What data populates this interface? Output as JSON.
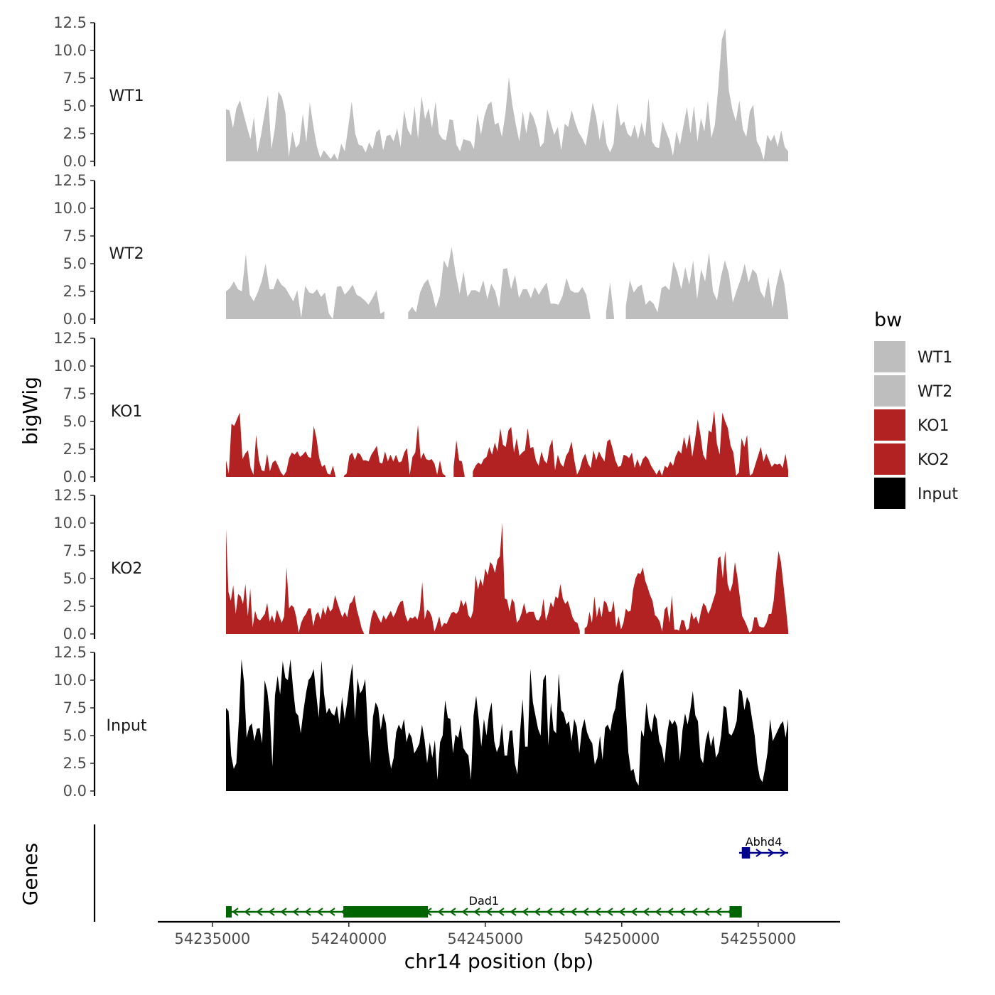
{
  "chart_data": {
    "type": "area",
    "title": "",
    "xlabel": "chr14 position (bp)",
    "ylabel_tracks": "bigWig",
    "ylabel_genes": "Genes",
    "xlim": [
      54233000,
      54258000
    ],
    "x_ticks": [
      {
        "value": 54235000,
        "label": "54235000"
      },
      {
        "value": 54240000,
        "label": "54240000"
      },
      {
        "value": 54245000,
        "label": "54245000"
      },
      {
        "value": 54250000,
        "label": "54250000"
      },
      {
        "value": 54255000,
        "label": "54255000"
      }
    ],
    "ylim": [
      0,
      12.5
    ],
    "y_ticks": [
      {
        "value": 0,
        "label": "0.0"
      },
      {
        "value": 2.5,
        "label": "2.5"
      },
      {
        "value": 5,
        "label": "5.0"
      },
      {
        "value": 7.5,
        "label": "7.5"
      },
      {
        "value": 10,
        "label": "10.0"
      },
      {
        "value": 12.5,
        "label": "12.5"
      }
    ],
    "x_range": [
      54235500,
      54256100
    ],
    "legend": {
      "title": "bw",
      "position": "right",
      "entries": [
        {
          "label": "WT1",
          "color": "#bebebe"
        },
        {
          "label": "WT2",
          "color": "#bebebe"
        },
        {
          "label": "KO1",
          "color": "#b22222"
        },
        {
          "label": "KO2",
          "color": "#b22222"
        },
        {
          "label": "Input",
          "color": "#000000"
        }
      ]
    },
    "series": [
      {
        "name": "WT1",
        "color": "#bebebe",
        "values": [
          4.7,
          4.6,
          3.0,
          4.8,
          5.5,
          4.3,
          3.1,
          2.0,
          4.0,
          0.8,
          2.3,
          4.2,
          6.0,
          1.1,
          3.0,
          6.3,
          5.8,
          4.4,
          0.4,
          2.7,
          1.2,
          1.6,
          4.3,
          1.7,
          5.3,
          3.2,
          1.4,
          0.3,
          1.0,
          0.6,
          0.2,
          0.7,
          0.1,
          1.6,
          0.9,
          3.1,
          5.4,
          2.5,
          1.5,
          1.4,
          0.8,
          1.7,
          1.1,
          2.6,
          2.9,
          1.0,
          2.3,
          2.4,
          1.8,
          3.0,
          1.3,
          4.6,
          2.9,
          2.3,
          5.0,
          2.0,
          5.9,
          3.8,
          4.8,
          3.0,
          5.4,
          2.5,
          2.0,
          1.9,
          3.8,
          3.7,
          1.5,
          0.9,
          2.0,
          1.9,
          1.8,
          1.1,
          4.3,
          2.4,
          4.1,
          5.1,
          5.4,
          3.3,
          3.5,
          2.2,
          4.3,
          7.6,
          5.1,
          3.3,
          1.8,
          4.5,
          2.5,
          4.5,
          4.0,
          3.0,
          1.3,
          1.7,
          4.7,
          3.5,
          2.4,
          3.1,
          1.0,
          3.4,
          3.1,
          4.6,
          3.5,
          2.6,
          2.1,
          1.4,
          3.3,
          5.3,
          4.0,
          1.9,
          3.8,
          1.5,
          0.8,
          1.6,
          5.3,
          3.2,
          3.6,
          2.5,
          2.2,
          3.3,
          2.0,
          3.5,
          2.2,
          5.7,
          1.8,
          1.3,
          1.2,
          3.6,
          2.7,
          1.9,
          0.5,
          2.7,
          1.5,
          3.2,
          4.9,
          2.5,
          5.0,
          1.8,
          3.9,
          2.7,
          5.5,
          2.1,
          3.3,
          6.8,
          11.0,
          12.0,
          6.4,
          4.7,
          3.6,
          5.5,
          2.9,
          2.2,
          4.5,
          5.1,
          1.8,
          1.2,
          0.1,
          2.4,
          1.8,
          2.4,
          1.3,
          2.8,
          1.3,
          0.9
        ]
      },
      {
        "name": "WT2",
        "color": "#bebebe",
        "values": [
          2.5,
          2.8,
          3.4,
          2.7,
          2.5,
          5.9,
          2.2,
          1.6,
          2.4,
          3.4,
          5.0,
          2.7,
          2.7,
          3.7,
          3.1,
          2.8,
          2.2,
          1.6,
          2.6,
          0.1,
          3.0,
          2.4,
          2.3,
          2.7,
          2.0,
          2.4,
          0.5,
          0.0,
          2.9,
          3.0,
          2.2,
          2.6,
          3.1,
          2.2,
          2.0,
          1.7,
          1.3,
          1.9,
          2.6,
          0.5,
          0.7,
          null,
          null,
          null,
          null,
          null,
          0.6,
          1.1,
          0.6,
          2.4,
          3.2,
          3.6,
          2.5,
          1.0,
          2.1,
          5.3,
          4.6,
          6.5,
          4.1,
          2.3,
          4.3,
          2.0,
          2.6,
          2.6,
          2.4,
          3.5,
          1.8,
          3.2,
          2.5,
          1.0,
          4.5,
          4.6,
          2.7,
          4.0,
          1.9,
          2.7,
          2.7,
          1.9,
          2.9,
          2.2,
          2.8,
          3.3,
          1.4,
          1.4,
          1.3,
          2.1,
          3.7,
          2.6,
          2.4,
          2.4,
          2.9,
          2.2,
          0.2,
          null,
          null,
          null,
          0.6,
          3.3,
          0.2,
          null,
          null,
          1.2,
          3.5,
          2.4,
          2.9,
          3.1,
          1.3,
          1.7,
          1.4,
          0.6,
          2.8,
          3.0,
          2.6,
          5.2,
          4.2,
          2.7,
          4.7,
          3.1,
          5.3,
          1.8,
          4.5,
          3.4,
          6.0,
          2.5,
          1.7,
          3.8,
          5.3,
          4.1,
          1.5,
          2.6,
          3.6,
          5.0,
          3.3,
          4.5,
          4.1,
          2.5,
          1.9,
          3.8,
          1.0,
          3.0,
          4.6,
          3.2,
          0.3
        ]
      },
      {
        "name": "KO1",
        "color": "#b22222",
        "values": [
          1.5,
          0.3,
          4.8,
          4.6,
          5.2,
          5.8,
          1.6,
          2.1,
          2.4,
          0.8,
          0.2,
          3.8,
          1.5,
          0.6,
          0.5,
          2.1,
          0.5,
          1.3,
          1.5,
          1.0,
          0.4,
          0.1,
          0.5,
          1.7,
          2.2,
          2.0,
          2.3,
          1.8,
          2.0,
          2.3,
          1.8,
          1.7,
          4.6,
          3.5,
          1.7,
          0.9,
          1.1,
          0.3,
          0.2,
          1.0,
          0.0,
          null,
          null,
          0.1,
          0.3,
          1.9,
          2.2,
          1.5,
          2.2,
          2.0,
          1.5,
          1.5,
          1.4,
          2.0,
          2.4,
          2.8,
          1.3,
          1.2,
          2.3,
          1.4,
          2.0,
          1.4,
          2.0,
          1.3,
          1.4,
          2.2,
          2.6,
          0.2,
          1.8,
          2.2,
          4.7,
          1.6,
          2.2,
          1.6,
          1.5,
          1.6,
          1.2,
          0.2,
          1.5,
          0.3,
          0.1,
          null,
          null,
          0.9,
          3.3,
          1.5,
          1.4,
          0.1,
          null,
          null,
          0.5,
          1.0,
          1.3,
          1.1,
          1.6,
          1.8,
          2.7,
          2.0,
          3.1,
          2.3,
          4.4,
          2.9,
          2.7,
          4.2,
          4.5,
          2.2,
          3.5,
          1.9,
          2.2,
          2.4,
          4.4,
          2.6,
          2.7,
          1.5,
          1.0,
          2.3,
          1.5,
          1.2,
          2.7,
          3.4,
          0.6,
          2.0,
          1.2,
          0.9,
          1.9,
          2.3,
          3.2,
          1.5,
          0.2,
          0.7,
          1.6,
          2.1,
          1.2,
          0.8,
          2.4,
          1.5,
          2.3,
          1.8,
          1.4,
          3.2,
          3.4,
          2.5,
          1.5,
          0.9,
          1.0,
          2.0,
          1.9,
          1.7,
          2.2,
          0.8,
          1.6,
          0.9,
          1.6,
          1.9,
          1.6,
          1.0,
          0.6,
          0.2,
          0.7,
          0.1,
          1.0,
          0.8,
          1.4,
          1.0,
          1.9,
          2.4,
          2.1,
          3.6,
          2.5,
          3.9,
          1.8,
          3.3,
          5.2,
          3.8,
          2.0,
          1.5,
          4.2,
          4.0,
          6.0,
          3.0,
          2.0,
          5.8,
          5.0,
          4.4,
          2.8,
          2.2,
          0.1,
          0.4,
          3.5,
          2.7,
          3.8,
          0.1,
          0.3,
          1.1,
          1.9,
          2.7,
          1.4,
          2.1,
          1.5,
          0.9,
          1.2,
          1.1,
          1.2,
          0.8,
          2.1,
          0.6
        ]
      },
      {
        "name": "KO2",
        "color": "#b22222",
        "values": [
          9.5,
          3.8,
          3.0,
          4.4,
          1.8,
          3.6,
          3.4,
          2.7,
          4.5,
          1.6,
          4.1,
          0.6,
          2.1,
          1.4,
          1.2,
          1.5,
          1.8,
          2.8,
          1.1,
          1.7,
          1.0,
          2.2,
          1.6,
          1.0,
          1.6,
          6.0,
          2.3,
          2.6,
          2.4,
          1.5,
          0.1,
          1.0,
          1.5,
          1.8,
          2.3,
          2.3,
          0.7,
          1.7,
          2.0,
          1.3,
          2.4,
          1.7,
          2.6,
          2.0,
          2.3,
          3.5,
          2.8,
          2.1,
          1.5,
          2.0,
          1.5,
          2.7,
          2.9,
          3.5,
          2.2,
          1.4,
          0.5,
          0.0,
          null,
          0.2,
          1.5,
          2.2,
          1.9,
          1.4,
          1.0,
          1.7,
          1.3,
          1.7,
          2.1,
          1.5,
          1.9,
          2.5,
          2.9,
          3.0,
          1.7,
          1.1,
          1.5,
          1.4,
          1.6,
          1.3,
          2.2,
          4.7,
          1.3,
          2.2,
          2.0,
          1.5,
          0.2,
          0.8,
          1.6,
          0.6,
          1.0,
          0.9,
          1.4,
          1.9,
          2.0,
          1.8,
          2.1,
          3.1,
          2.5,
          3.0,
          1.7,
          1.4,
          2.1,
          5.3,
          4.0,
          5.0,
          4.3,
          5.9,
          5.3,
          6.5,
          6.2,
          5.5,
          6.7,
          7.0,
          10.0,
          3.2,
          3.1,
          2.0,
          3.2,
          2.8,
          1.0,
          1.3,
          1.9,
          2.8,
          1.8,
          2.0,
          2.0,
          2.0,
          1.3,
          1.2,
          1.7,
          3.2,
          1.2,
          1.9,
          2.9,
          2.4,
          3.4,
          3.2,
          4.5,
          3.2,
          2.7,
          3.0,
          2.3,
          1.5,
          1.1,
          1.0,
          0.3,
          null,
          0.5,
          0.7,
          2.0,
          1.0,
          3.4,
          1.5,
          2.5,
          1.5,
          3.0,
          2.8,
          2.0,
          2.0,
          3.0,
          0.6,
          1.6,
          0.4,
          1.0,
          2.3,
          2.0,
          2.1,
          4.0,
          5.0,
          5.5,
          5.4,
          6.0,
          4.8,
          4.2,
          3.5,
          3.0,
          1.7,
          1.5,
          1.1,
          0.2,
          2.2,
          2.5,
          1.0,
          3.5,
          0.4,
          0.4,
          0.3,
          1.3,
          1.2,
          0.3,
          0.5,
          2.0,
          1.3,
          1.6,
          0.9,
          2.0,
          2.8,
          2.5,
          1.8,
          2.3,
          3.0,
          3.7,
          6.8,
          7.0,
          5.0,
          7.5,
          4.5,
          3.8,
          4.5,
          6.5,
          5.2,
          3.4,
          1.6,
          1.2,
          0.7,
          0.1,
          0.3,
          1.5,
          1.5,
          0.7,
          0.6,
          0.6,
          1.0,
          1.8,
          1.8,
          3.0,
          5.5,
          7.5,
          6.5,
          4.5,
          2.5,
          0.3
        ]
      },
      {
        "name": "Input",
        "color": "#000000",
        "values": [
          7.5,
          7.2,
          3.2,
          2.0,
          2.5,
          6.4,
          11.9,
          9.8,
          4.8,
          5.8,
          6.1,
          4.5,
          5.6,
          5.7,
          4.3,
          10.0,
          9.0,
          7.0,
          2.2,
          8.6,
          10.4,
          8.7,
          11.7,
          10.2,
          10.0,
          11.9,
          9.3,
          7.1,
          6.8,
          5.2,
          7.2,
          8.8,
          10.0,
          10.3,
          11.0,
          8.7,
          6.6,
          11.8,
          8.8,
          7.0,
          7.5,
          7.0,
          6.8,
          7.7,
          6.0,
          8.5,
          6.5,
          8.0,
          10.0,
          11.5,
          6.5,
          10.2,
          8.8,
          9.2,
          10.1,
          5.5,
          2.5,
          6.7,
          8.0,
          7.5,
          5.5,
          7.0,
          6.1,
          3.5,
          2.0,
          3.0,
          5.3,
          6.0,
          5.5,
          6.5,
          4.4,
          5.3,
          4.8,
          3.4,
          3.8,
          4.3,
          6.0,
          4.6,
          2.5,
          4.4,
          3.0,
          4.6,
          1.0,
          4.4,
          5.0,
          8.2,
          6.6,
          6.5,
          3.4,
          5.1,
          4.8,
          6.0,
          3.9,
          3.5,
          3.2,
          1.0,
          6.8,
          8.6,
          6.5,
          4.0,
          6.5,
          5.0,
          7.0,
          8.0,
          4.5,
          3.5,
          4.1,
          6.1,
          3.2,
          3.2,
          5.4,
          5.5,
          2.5,
          1.5,
          5.3,
          8.3,
          4.0,
          4.0,
          11.0,
          8.0,
          6.8,
          5.6,
          5.0,
          10.0,
          10.5,
          4.1,
          8.0,
          5.5,
          5.2,
          10.6,
          7.3,
          7.0,
          6.0,
          6.3,
          4.5,
          6.5,
          5.8,
          3.4,
          5.6,
          6.5,
          5.3,
          4.7,
          4.3,
          2.4,
          3.0,
          5.0,
          2.8,
          5.7,
          6.0,
          5.4,
          6.8,
          7.5,
          9.5,
          10.5,
          11.0,
          7.5,
          3.5,
          1.8,
          2.0,
          0.9,
          0.5,
          5.5,
          4.9,
          8.0,
          6.1,
          5.3,
          7.0,
          6.5,
          4.5,
          3.9,
          2.5,
          5.1,
          6.5,
          6.0,
          6.4,
          5.8,
          2.7,
          5.5,
          7.0,
          6.0,
          7.3,
          9.0,
          6.8,
          6.3,
          3.0,
          2.5,
          4.5,
          5.5,
          4.0,
          5.0,
          3.0,
          3.5,
          5.0,
          7.7,
          7.5,
          5.2,
          5.0,
          5.5,
          6.3,
          9.2,
          9.0,
          7.3,
          8.5,
          8.0,
          6.5,
          5.0,
          2.5,
          1.2,
          0.8,
          2.0,
          3.5,
          6.5,
          4.5,
          5.0,
          5.5,
          6.0,
          6.3,
          4.8,
          6.5
        ]
      }
    ],
    "genes": [
      {
        "name": "Dad1",
        "strand": "-",
        "start": 54235500,
        "end": 54254400,
        "color": "#006400",
        "exons": [
          [
            54235500,
            54235700
          ],
          [
            54239800,
            54242900
          ],
          [
            54253950,
            54254400
          ]
        ]
      },
      {
        "name": "Abhd4",
        "strand": "+",
        "start": 54254300,
        "end": 54256100,
        "color": "#00008b",
        "exons": [
          [
            54254400,
            54254700
          ]
        ]
      }
    ]
  }
}
